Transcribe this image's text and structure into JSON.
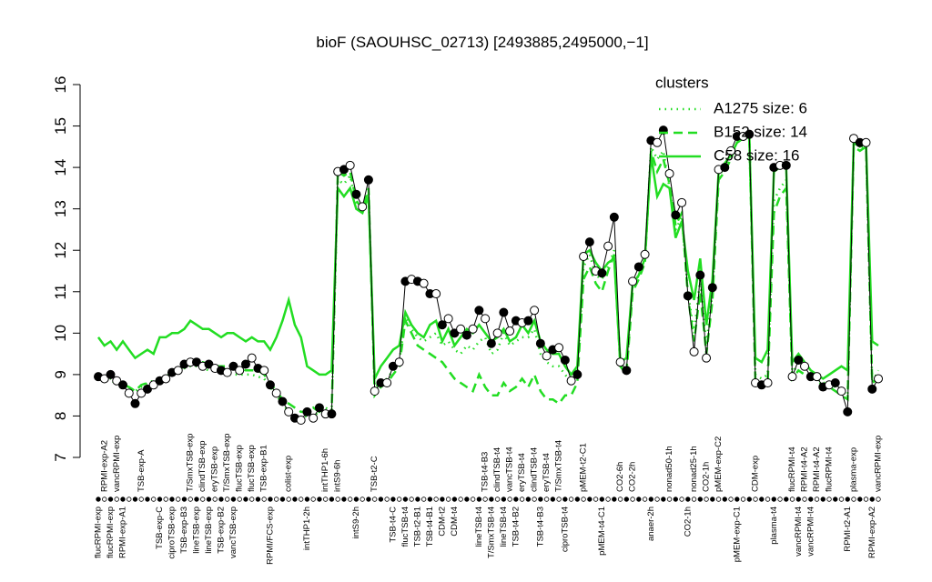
{
  "chart_data": {
    "type": "line",
    "title": "bioF (SAOUHSC_02713) [2493885,2495000,−1]",
    "ylim": [
      7,
      16
    ],
    "yticks": [
      7,
      8,
      9,
      10,
      11,
      12,
      13,
      14,
      15,
      16
    ],
    "color": "#000000",
    "categories": [
      "flucRPMI-exp",
      "RPMI-exp-A2",
      "flucRPMI-exp",
      "vancRPMI-exp",
      "RPMI-exp-A1",
      null,
      null,
      "TSB-exp-A",
      null,
      null,
      "TSB-exp-C",
      null,
      "ciproTSB-exp",
      null,
      "TSB-exp-B3",
      "T/SmxTSB-exp",
      "lineTSB-exp",
      "clindTSB-exp",
      "lineTSB-exp",
      "eryTSB-exp",
      "TSB-exp-B2",
      "T/SmxTSB-exp",
      "vancTSB-exp",
      "flucTSB-exp",
      null,
      "flucTSB-exp",
      null,
      "TSB-exp-B1",
      "RPMI/FCS-exp",
      null,
      null,
      "colist-exp",
      null,
      null,
      "intTHP1-2h",
      null,
      null,
      "intTHP1-6h",
      null,
      "intS9-6h",
      null,
      null,
      "intS9-2h",
      null,
      null,
      "TSB-t2-C",
      null,
      null,
      "TSB-t4-C",
      null,
      "flucTSB-t4",
      null,
      "TSB-t2-B1",
      null,
      "TSB-t4-B1",
      null,
      "CDM-t2",
      null,
      "CDM-t4",
      null,
      null,
      null,
      "lineTSB-t4",
      "TSB-t4-B3",
      "T/SmxTSB-t4",
      "clindTSB-t4",
      "lineTSB-t4",
      "vancTSB-t4",
      "TSB-t4-B2",
      "eryTSB-t4",
      null,
      "clindTSB-t4",
      "TSB-t4-B3",
      "eryTSB-t4",
      null,
      "T/SmxTSB-t4",
      "ciproTSB-t4",
      null,
      null,
      "pMEM-t2-C1",
      null,
      null,
      "pMEM-t4-C1",
      null,
      null,
      "CO2-6h",
      null,
      "CO2-2h",
      null,
      null,
      "anaer-2h",
      null,
      null,
      "nonad50-1h",
      null,
      null,
      "CO2-1h",
      "nonad25-1h",
      null,
      "CO2-1h",
      null,
      "pMEM-exp-C2",
      null,
      null,
      "pMEM-exp-C1",
      null,
      null,
      "CDM-exp",
      null,
      null,
      "plasma-t4",
      null,
      null,
      "flucRPMI-t4",
      "vancRPMI-t4",
      "RPMI-t4-A2",
      "vancRPMI-t4",
      "RPMI-t4-A2",
      null,
      "flucRPMI-t4",
      null,
      null,
      "RPMI-t2-A1",
      "plasma-exp",
      null,
      null,
      "RPMI-exp-A2",
      "vancRPMI-exp"
    ],
    "values": [
      8.95,
      8.9,
      9.0,
      8.85,
      8.75,
      8.55,
      8.3,
      8.55,
      8.65,
      8.75,
      8.85,
      8.9,
      9.05,
      9.1,
      9.25,
      9.3,
      9.3,
      9.2,
      9.25,
      9.15,
      9.1,
      9.05,
      9.2,
      9.1,
      9.25,
      9.4,
      9.15,
      9.1,
      8.75,
      8.55,
      8.35,
      8.1,
      7.95,
      7.9,
      8.1,
      7.95,
      8.2,
      8.05,
      8.05,
      13.9,
      13.95,
      14.05,
      13.35,
      13.05,
      13.7,
      8.6,
      8.8,
      8.8,
      9.2,
      9.3,
      11.25,
      11.3,
      11.25,
      11.2,
      10.95,
      10.95,
      10.2,
      10.35,
      10.0,
      10.1,
      9.95,
      10.1,
      10.55,
      10.35,
      9.75,
      10.0,
      10.5,
      10.05,
      10.3,
      10.25,
      10.3,
      10.55,
      9.75,
      9.45,
      9.6,
      9.65,
      9.35,
      8.85,
      9.0,
      11.85,
      12.2,
      11.5,
      11.45,
      12.1,
      12.8,
      9.3,
      9.1,
      11.25,
      11.6,
      11.9,
      14.65,
      14.6,
      14.9,
      13.85,
      12.85,
      13.15,
      10.9,
      9.55,
      11.4,
      9.4,
      11.1,
      13.95,
      14.0,
      14.4,
      14.75,
      14.75,
      14.8,
      8.8,
      8.75,
      8.8,
      14.0,
      14.05,
      14.05,
      8.95,
      9.35,
      9.2,
      8.95,
      8.95,
      8.7,
      8.75,
      8.8,
      8.6,
      8.1,
      14.7,
      14.6,
      14.6,
      8.65,
      8.9
    ],
    "legend_title": "clusters",
    "legend_color": "#22dd22",
    "series": [
      {
        "name": "A1275 size: 6",
        "color": "#22dd22",
        "dash": "dotted",
        "values": [
          8.95,
          8.9,
          8.9,
          8.85,
          8.8,
          8.7,
          8.6,
          8.7,
          8.8,
          8.85,
          8.9,
          8.95,
          9.05,
          9.1,
          9.15,
          9.2,
          9.2,
          9.15,
          9.1,
          9.1,
          9.05,
          9.05,
          9.0,
          9.0,
          9.0,
          9.0,
          8.95,
          8.9,
          8.7,
          8.5,
          8.3,
          8.1,
          8.0,
          7.95,
          8.0,
          8.0,
          8.1,
          8.2,
          8.1,
          13.7,
          13.6,
          13.8,
          13.1,
          13.0,
          13.4,
          8.7,
          8.8,
          8.9,
          9.1,
          9.3,
          10.4,
          10.1,
          9.9,
          9.8,
          9.9,
          10.0,
          9.7,
          9.8,
          9.6,
          9.5,
          9.7,
          9.6,
          9.8,
          9.9,
          9.5,
          9.6,
          10.0,
          9.7,
          9.8,
          9.9,
          9.9,
          10.1,
          9.5,
          9.3,
          9.2,
          9.2,
          9.0,
          8.8,
          9.0,
          11.6,
          11.9,
          11.4,
          11.3,
          11.6,
          12.0,
          9.2,
          9.1,
          11.1,
          11.4,
          11.7,
          14.5,
          14.2,
          14.4,
          13.5,
          12.5,
          12.8,
          11.0,
          10.0,
          11.3,
          9.7,
          11.0,
          13.8,
          14.0,
          14.3,
          14.6,
          14.7,
          14.7,
          9.0,
          8.9,
          9.0,
          13.2,
          13.5,
          13.7,
          9.0,
          9.3,
          9.2,
          9.0,
          8.9,
          8.8,
          8.8,
          8.7,
          8.6,
          8.5,
          14.6,
          14.5,
          14.5,
          8.8,
          9.1
        ]
      },
      {
        "name": "B152 size: 14",
        "color": "#22dd22",
        "dash": "dashed",
        "values": [
          8.9,
          8.9,
          8.85,
          8.8,
          8.75,
          8.7,
          8.6,
          8.75,
          8.8,
          8.8,
          8.9,
          8.9,
          9.1,
          9.1,
          9.2,
          9.25,
          9.3,
          9.3,
          9.25,
          9.2,
          9.2,
          9.2,
          9.2,
          9.15,
          9.1,
          9.1,
          9.1,
          9.0,
          8.8,
          8.6,
          8.4,
          8.3,
          8.2,
          8.1,
          8.1,
          8.2,
          8.1,
          8.1,
          8.1,
          13.9,
          13.8,
          13.9,
          13.2,
          13.0,
          13.5,
          8.5,
          8.7,
          8.8,
          9.0,
          9.2,
          10.3,
          10.0,
          9.7,
          9.6,
          9.5,
          9.4,
          9.3,
          9.1,
          8.9,
          8.8,
          8.7,
          8.6,
          9.0,
          8.7,
          8.5,
          8.5,
          8.8,
          8.6,
          8.7,
          8.9,
          8.7,
          9.0,
          8.6,
          8.4,
          8.4,
          8.3,
          8.5,
          8.5,
          8.8,
          11.3,
          11.6,
          11.2,
          11.0,
          11.5,
          11.9,
          9.2,
          9.0,
          11.0,
          11.3,
          11.7,
          14.4,
          13.9,
          14.2,
          13.6,
          12.6,
          12.9,
          10.9,
          9.8,
          11.0,
          9.5,
          10.8,
          13.7,
          13.9,
          14.2,
          14.6,
          14.7,
          14.7,
          8.8,
          8.7,
          8.8,
          12.9,
          13.3,
          13.5,
          8.9,
          9.1,
          9.0,
          8.9,
          8.9,
          8.7,
          8.7,
          8.6,
          8.5,
          8.4,
          14.5,
          14.4,
          14.5,
          8.8,
          8.9
        ]
      },
      {
        "name": "C58 size: 16",
        "color": "#22dd22",
        "dash": "solid",
        "values": [
          9.9,
          9.7,
          9.8,
          9.6,
          9.8,
          9.6,
          9.4,
          9.5,
          9.6,
          9.5,
          9.9,
          9.9,
          10.0,
          10.0,
          10.1,
          10.3,
          10.2,
          10.1,
          10.1,
          10.0,
          9.9,
          10.0,
          10.0,
          9.9,
          9.8,
          9.9,
          9.8,
          9.8,
          9.6,
          9.9,
          10.3,
          10.8,
          10.2,
          9.9,
          9.2,
          9.1,
          9.0,
          9.0,
          9.1,
          13.5,
          13.3,
          13.5,
          13.0,
          12.9,
          13.3,
          8.9,
          9.2,
          9.4,
          9.6,
          9.7,
          10.5,
          10.2,
          10.0,
          9.9,
          10.2,
          10.3,
          9.8,
          10.1,
          9.7,
          9.9,
          10.1,
          10.0,
          10.2,
          10.0,
          9.8,
          9.9,
          10.1,
          9.8,
          9.9,
          10.2,
          10.0,
          10.3,
          9.8,
          9.6,
          9.5,
          9.5,
          9.2,
          9.0,
          9.2,
          11.9,
          12.0,
          11.7,
          11.5,
          11.7,
          11.8,
          9.3,
          9.4,
          11.2,
          11.4,
          11.8,
          14.3,
          13.3,
          13.6,
          13.5,
          12.3,
          12.7,
          11.5,
          10.8,
          11.8,
          10.2,
          11.3,
          13.9,
          14.1,
          14.3,
          14.6,
          14.8,
          14.7,
          9.4,
          9.3,
          9.6,
          13.9,
          14.0,
          14.0,
          9.3,
          9.5,
          9.3,
          9.1,
          9.0,
          8.9,
          9.0,
          9.1,
          9.2,
          9.1,
          14.6,
          14.5,
          14.6,
          9.8,
          9.7
        ]
      }
    ]
  }
}
